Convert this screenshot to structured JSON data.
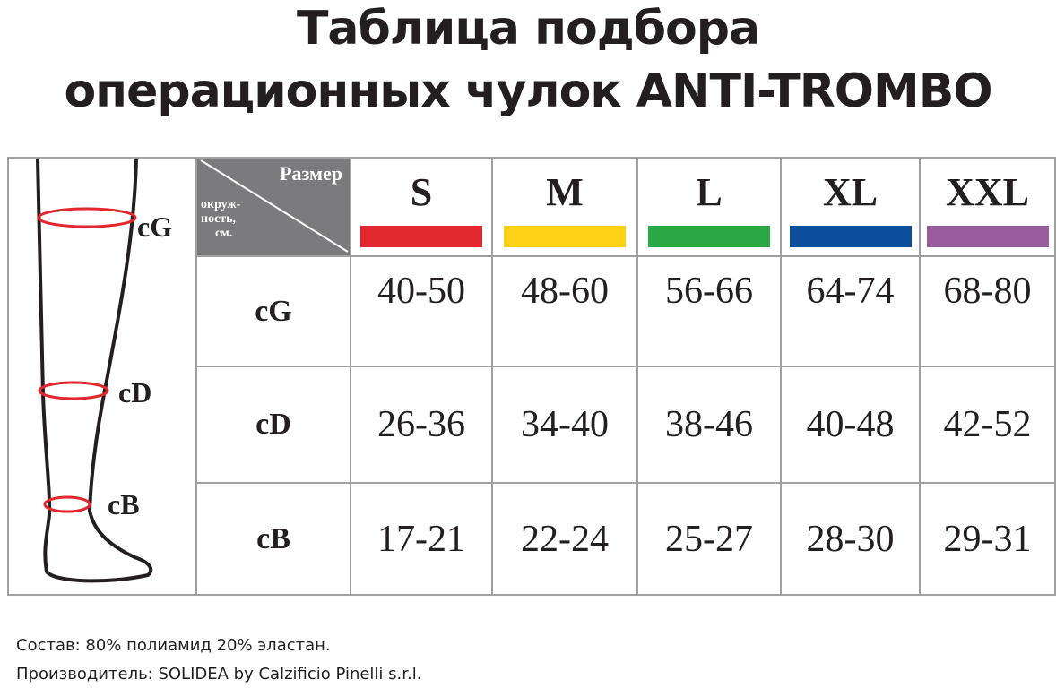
{
  "header": {
    "title_lines": [
      "Таблица подбора",
      "операционных чулок ANTI-TROMBO"
    ]
  },
  "illustration": {
    "labels": [
      "cG",
      "cD",
      "cB"
    ]
  },
  "table": {
    "corner_top": "Размер",
    "corner_bottom": [
      "окруж-",
      "ность,",
      "см."
    ],
    "columns": [
      "S",
      "M",
      "L",
      "XL",
      "XXL"
    ],
    "rows": [
      {
        "label": "cG",
        "values": [
          "40-50",
          "48-60",
          "56-66",
          "64-74",
          "68-80"
        ]
      },
      {
        "label": "cD",
        "values": [
          "26-36",
          "34-40",
          "38-46",
          "40-48",
          "42-52"
        ]
      },
      {
        "label": "cB",
        "values": [
          "17-21",
          "22-24",
          "25-27",
          "28-30",
          "29-31"
        ]
      }
    ]
  },
  "footer": {
    "lines": [
      "Состав: 80% полиамид 20% эластан.",
      "Производитель: SOLIDEA by Calzificio Pinelli s.r.l."
    ]
  }
}
